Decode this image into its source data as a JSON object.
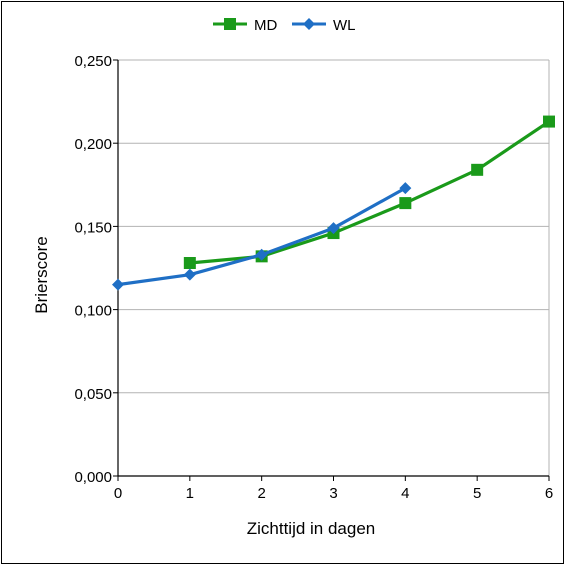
{
  "chart_data": {
    "type": "line",
    "title": "",
    "xlabel": "Zichttijd in dagen",
    "ylabel": "Brierscore",
    "xlim": [
      0,
      6
    ],
    "ylim": [
      0,
      0.25
    ],
    "x_ticks": [
      "0",
      "1",
      "2",
      "3",
      "4",
      "5",
      "6"
    ],
    "y_ticks": [
      "0,000",
      "0,050",
      "0,100",
      "0,150",
      "0,200",
      "0,250"
    ],
    "grid": "horizontal",
    "legend_position": "top-center",
    "series": [
      {
        "name": "MD",
        "color": "#1a9a1a",
        "marker": "square",
        "x": [
          1,
          2,
          3,
          4,
          5,
          6
        ],
        "y": [
          0.128,
          0.132,
          0.146,
          0.164,
          0.184,
          0.213
        ]
      },
      {
        "name": "WL",
        "color": "#1f6fc5",
        "marker": "diamond",
        "x": [
          0,
          1,
          2,
          3,
          4
        ],
        "y": [
          0.115,
          0.121,
          0.133,
          0.149,
          0.173
        ]
      }
    ]
  }
}
